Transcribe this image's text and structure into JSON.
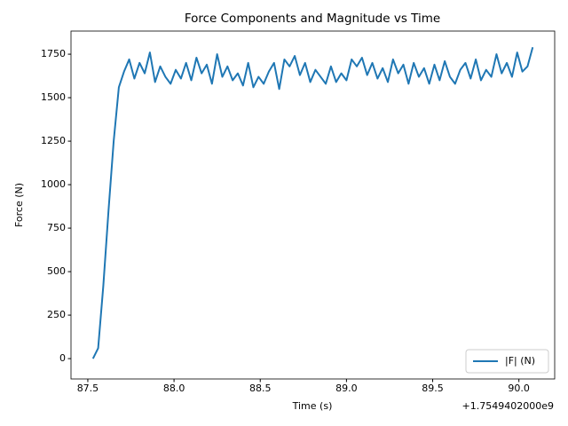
{
  "chart_data": {
    "type": "line",
    "title": "Force Components and Magnitude vs Time",
    "x_label": "Time (s)",
    "y_label": "Force (N)",
    "x_offset_text": "+1.7549402000e9",
    "x": [
      87.53,
      87.56,
      87.59,
      87.62,
      87.65,
      87.68,
      87.71,
      87.74,
      87.77,
      87.8,
      87.83,
      87.86,
      87.89,
      87.92,
      87.95,
      87.98,
      88.01,
      88.04,
      88.07,
      88.1,
      88.13,
      88.16,
      88.19,
      88.22,
      88.25,
      88.28,
      88.31,
      88.34,
      88.37,
      88.4,
      88.43,
      88.46,
      88.49,
      88.52,
      88.55,
      88.58,
      88.61,
      88.64,
      88.67,
      88.7,
      88.73,
      88.76,
      88.79,
      88.82,
      88.85,
      88.88,
      88.91,
      88.94,
      88.97,
      89.0,
      89.03,
      89.06,
      89.09,
      89.12,
      89.15,
      89.18,
      89.21,
      89.24,
      89.27,
      89.3,
      89.33,
      89.36,
      89.39,
      89.42,
      89.45,
      89.48,
      89.51,
      89.54,
      89.57,
      89.6,
      89.63,
      89.66,
      89.69,
      89.72,
      89.75,
      89.78,
      89.81,
      89.84,
      89.87,
      89.9,
      89.93,
      89.96,
      89.99,
      90.02,
      90.05,
      90.08
    ],
    "series": [
      {
        "name": "|F| (N)",
        "color": "#1f77b4",
        "values": [
          0,
          60,
          420,
          850,
          1250,
          1560,
          1650,
          1720,
          1610,
          1700,
          1640,
          1760,
          1590,
          1680,
          1620,
          1580,
          1660,
          1610,
          1700,
          1600,
          1730,
          1640,
          1690,
          1580,
          1750,
          1620,
          1680,
          1600,
          1640,
          1570,
          1700,
          1560,
          1620,
          1580,
          1650,
          1700,
          1550,
          1720,
          1680,
          1740,
          1630,
          1700,
          1590,
          1660,
          1620,
          1580,
          1680,
          1590,
          1640,
          1600,
          1720,
          1680,
          1730,
          1630,
          1700,
          1610,
          1670,
          1590,
          1720,
          1640,
          1690,
          1580,
          1700,
          1620,
          1670,
          1580,
          1690,
          1600,
          1710,
          1620,
          1580,
          1660,
          1700,
          1610,
          1720,
          1600,
          1660,
          1620,
          1750,
          1640,
          1700,
          1620,
          1760,
          1650,
          1680,
          1790
        ]
      }
    ],
    "xlim": [
      87.4025,
      90.2075
    ],
    "ylim": [
      -117,
      1883
    ],
    "xticks": [
      87.5,
      {
        "value": 88,
        "label": "88.0"
      },
      88.5,
      {
        "value": 89,
        "label": "89.0"
      },
      89.5,
      {
        "value": 90,
        "label": "90.0"
      }
    ],
    "yticks": [
      0,
      250,
      500,
      750,
      1000,
      1250,
      1500,
      1750
    ],
    "legend": "lower right",
    "grid": false
  }
}
